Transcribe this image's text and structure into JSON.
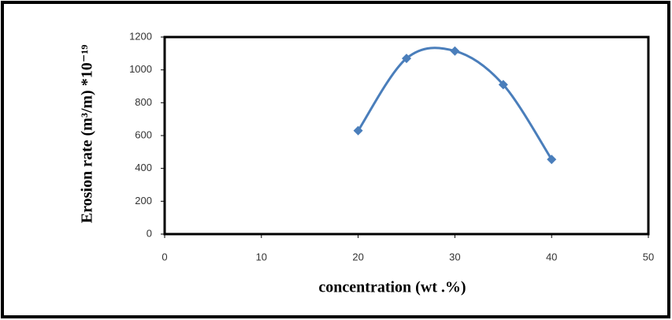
{
  "chart_data": {
    "type": "line",
    "xlabel": "concentration  (wt .%)",
    "ylabel": "Erosion rate (m³/m) *10⁻¹⁹",
    "x": [
      20,
      25,
      30,
      35,
      40
    ],
    "series": [
      {
        "color": "#4a7ebb",
        "values": [
          630,
          1070,
          1115,
          910,
          455
        ]
      }
    ],
    "xlim": [
      0,
      50
    ],
    "xticks": [
      0,
      10,
      20,
      30,
      40,
      50
    ],
    "ylim": [
      0,
      1200
    ],
    "yticks": [
      0,
      200,
      400,
      600,
      800,
      1000,
      1200
    ],
    "smooth": true,
    "marker": "diamond",
    "grid": false
  }
}
